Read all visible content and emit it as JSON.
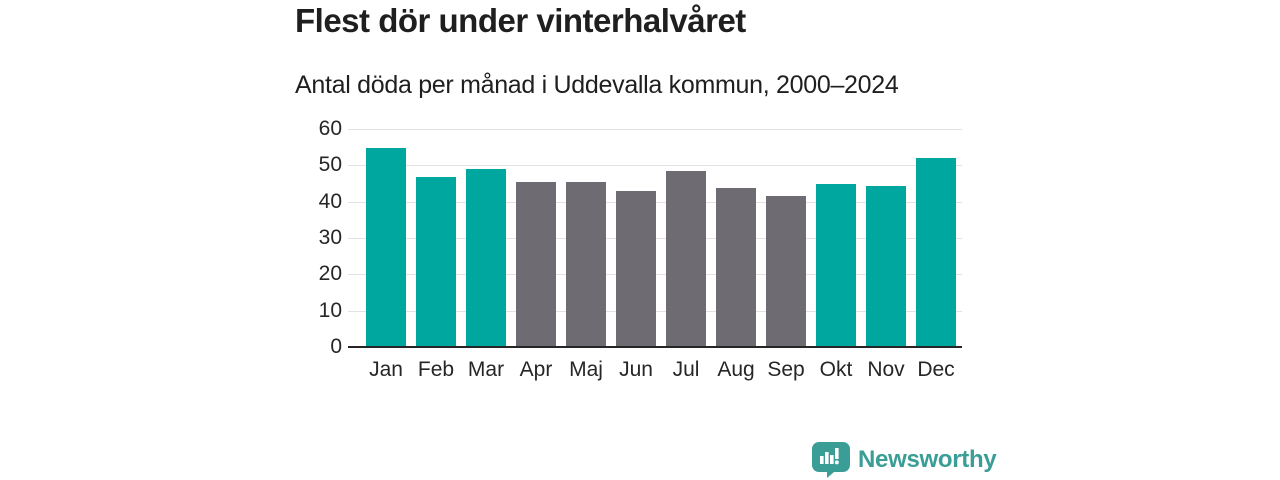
{
  "title": "Flest dör under vinterhalvåret",
  "subtitle": "Antal döda per månad i Uddevalla kommun, 2000–2024",
  "chart_data": {
    "type": "bar",
    "title": "Flest dör under vinterhalvåret",
    "subtitle": "Antal döda per månad i Uddevalla kommun, 2000–2024",
    "categories": [
      "Jan",
      "Feb",
      "Mar",
      "Apr",
      "Maj",
      "Jun",
      "Jul",
      "Aug",
      "Sep",
      "Okt",
      "Nov",
      "Dec"
    ],
    "values": [
      54.9,
      46.9,
      49.0,
      45.5,
      45.3,
      42.9,
      48.5,
      43.7,
      41.5,
      44.9,
      44.4,
      51.9
    ],
    "highlighted": [
      true,
      true,
      true,
      false,
      false,
      false,
      false,
      false,
      false,
      true,
      true,
      true
    ],
    "ylabel": "",
    "xlabel": "",
    "ylim": [
      0,
      60
    ],
    "yticks": [
      0,
      10,
      20,
      30,
      40,
      50,
      60
    ],
    "grid": true,
    "legend": "none"
  },
  "colors": {
    "highlight_bar": "#00a79e",
    "normal_bar": "#6e6b73",
    "grid": "#e4e2e4",
    "axis": "#262626",
    "text": "#1f1f1f",
    "logo": "#3a9e96"
  },
  "branding": {
    "logo_text": "Newsworthy"
  }
}
